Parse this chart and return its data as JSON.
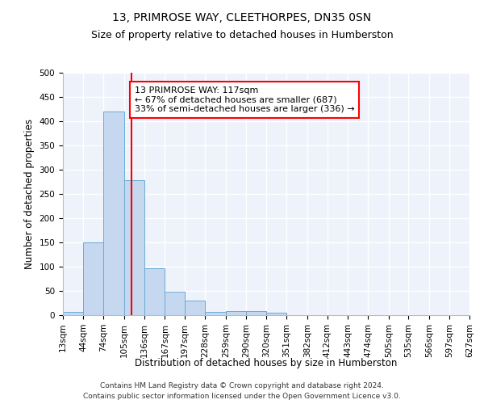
{
  "title": "13, PRIMROSE WAY, CLEETHORPES, DN35 0SN",
  "subtitle": "Size of property relative to detached houses in Humberston",
  "xlabel": "Distribution of detached houses by size in Humberston",
  "ylabel": "Number of detached properties",
  "footer_line1": "Contains HM Land Registry data © Crown copyright and database right 2024.",
  "footer_line2": "Contains public sector information licensed under the Open Government Licence v3.0.",
  "bin_edges": [
    13,
    44,
    74,
    105,
    136,
    167,
    197,
    228,
    259,
    290,
    320,
    351,
    382,
    412,
    443,
    474,
    505,
    535,
    566,
    597,
    627
  ],
  "bar_heights": [
    6,
    150,
    420,
    278,
    96,
    49,
    30,
    7,
    9,
    8,
    5,
    0,
    0,
    0,
    0,
    0,
    0,
    0,
    0,
    0
  ],
  "bar_color": "#c5d8f0",
  "bar_edge_color": "#6aaad4",
  "vline_x": 117,
  "vline_color": "red",
  "annotation_text": "13 PRIMROSE WAY: 117sqm\n← 67% of detached houses are smaller (687)\n33% of semi-detached houses are larger (336) →",
  "annotation_box_color": "white",
  "annotation_box_edge_color": "red",
  "ylim": [
    0,
    500
  ],
  "yticks": [
    0,
    50,
    100,
    150,
    200,
    250,
    300,
    350,
    400,
    450,
    500
  ],
  "background_color": "#eef2fb",
  "grid_color": "white",
  "title_fontsize": 10,
  "subtitle_fontsize": 9,
  "axis_label_fontsize": 8.5,
  "tick_fontsize": 7.5,
  "annotation_fontsize": 8,
  "footer_fontsize": 6.5
}
